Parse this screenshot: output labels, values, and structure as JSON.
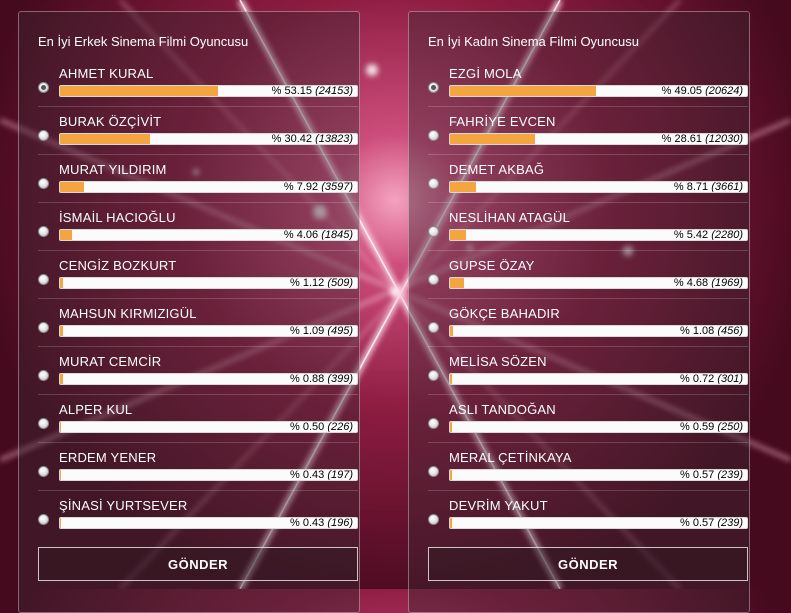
{
  "colors": {
    "bar_fill": "#f2a541",
    "bar_bg": "#fbfbfb"
  },
  "panels": [
    {
      "title": "En İyi Erkek Sinema Filmi Oyuncusu",
      "submit_label": "GÖNDER",
      "items": [
        {
          "name": "AHMET KURAL",
          "percent_label": "% 53.15",
          "votes": "(24153)",
          "percent": 53.15,
          "checked": true
        },
        {
          "name": "BURAK ÖZÇİVİT",
          "percent_label": "% 30.42",
          "votes": "(13823)",
          "percent": 30.42,
          "checked": false
        },
        {
          "name": "MURAT YILDIRIM",
          "percent_label": "% 7.92",
          "votes": "(3597)",
          "percent": 7.92,
          "checked": false
        },
        {
          "name": "İSMAİL HACIOĞLU",
          "percent_label": "% 4.06",
          "votes": "(1845)",
          "percent": 4.06,
          "checked": false
        },
        {
          "name": "CENGİZ BOZKURT",
          "percent_label": "% 1.12",
          "votes": "(509)",
          "percent": 1.12,
          "checked": false
        },
        {
          "name": "MAHSUN KIRMIZIGÜL",
          "percent_label": "% 1.09",
          "votes": "(495)",
          "percent": 1.09,
          "checked": false
        },
        {
          "name": "MURAT CEMCİR",
          "percent_label": "% 0.88",
          "votes": "(399)",
          "percent": 0.88,
          "checked": false
        },
        {
          "name": "ALPER KUL",
          "percent_label": "% 0.50",
          "votes": "(226)",
          "percent": 0.5,
          "checked": false
        },
        {
          "name": "ERDEM YENER",
          "percent_label": "% 0.43",
          "votes": "(197)",
          "percent": 0.43,
          "checked": false
        },
        {
          "name": "ŞİNASİ YURTSEVER",
          "percent_label": "% 0.43",
          "votes": "(196)",
          "percent": 0.43,
          "checked": false
        }
      ]
    },
    {
      "title": "En İyi Kadın Sinema Filmi Oyuncusu",
      "submit_label": "GÖNDER",
      "items": [
        {
          "name": "EZGİ MOLA",
          "percent_label": "% 49.05",
          "votes": "(20624)",
          "percent": 49.05,
          "checked": true
        },
        {
          "name": "FAHRİYE EVCEN",
          "percent_label": "% 28.61",
          "votes": "(12030)",
          "percent": 28.61,
          "checked": false
        },
        {
          "name": "DEMET AKBAĞ",
          "percent_label": "% 8.71",
          "votes": "(3661)",
          "percent": 8.71,
          "checked": false
        },
        {
          "name": "NESLİHAN ATAGÜL",
          "percent_label": "% 5.42",
          "votes": "(2280)",
          "percent": 5.42,
          "checked": false
        },
        {
          "name": "GUPSE ÖZAY",
          "percent_label": "% 4.68",
          "votes": "(1969)",
          "percent": 4.68,
          "checked": false
        },
        {
          "name": "GÖKÇE BAHADIR",
          "percent_label": "% 1.08",
          "votes": "(456)",
          "percent": 1.08,
          "checked": false
        },
        {
          "name": "MELİSA SÖZEN",
          "percent_label": "% 0.72",
          "votes": "(301)",
          "percent": 0.72,
          "checked": false
        },
        {
          "name": "ASLI TANDOĞAN",
          "percent_label": "% 0.59",
          "votes": "(250)",
          "percent": 0.59,
          "checked": false
        },
        {
          "name": "MERAL ÇETİNKAYA",
          "percent_label": "% 0.57",
          "votes": "(239)",
          "percent": 0.57,
          "checked": false
        },
        {
          "name": "DEVRİM YAKUT",
          "percent_label": "% 0.57",
          "votes": "(239)",
          "percent": 0.57,
          "checked": false
        }
      ]
    }
  ]
}
